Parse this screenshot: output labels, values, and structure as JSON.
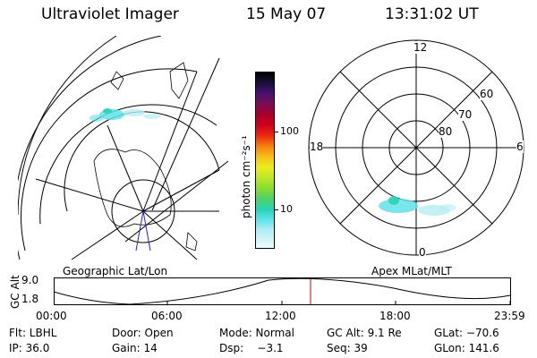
{
  "header": {
    "instrument": "Ultraviolet Imager",
    "date": "15 May 07",
    "time": "13:31:02 UT"
  },
  "colorbar": {
    "unit_label": "photon cm⁻²s⁻¹",
    "ticks": [
      "100",
      "10"
    ],
    "colors": [
      "#000000",
      "#1a0f3a",
      "#4a1070",
      "#7a0d55",
      "#a8002a",
      "#d0001c",
      "#ec2a10",
      "#f57f10",
      "#f7c018",
      "#ecec20",
      "#bfe82a",
      "#88dc30",
      "#50d066",
      "#28d4b4",
      "#60e2e8",
      "#b4eef4",
      "#eefafc"
    ]
  },
  "left_map": {
    "caption": "Geographic Lat/Lon"
  },
  "right_map": {
    "caption": "Apex MLat/MLT",
    "hour_labels": {
      "top": "12",
      "left": "18",
      "right": "6",
      "bottom": "0"
    },
    "lat_labels": [
      "60",
      "70",
      "80"
    ]
  },
  "orbit_plot": {
    "ylabel": "GC Alt",
    "yticks": [
      "9.0",
      "1.8"
    ],
    "xticks": [
      "00:00",
      "06:00",
      "12:00",
      "18:00",
      "23:59"
    ],
    "marker_time": "13:31",
    "marker_color": "#cc0000"
  },
  "footer": {
    "row1": [
      "Flt: LBHL",
      "Door: Open",
      "Mode: Normal",
      "GC Alt: 9.1 Re",
      "GLat: −70.6"
    ],
    "row2": [
      "IP: 36.0",
      "Gain: 14",
      "Dsp:    −3.1",
      "Seq: 39",
      "GLon: 141.6"
    ]
  }
}
